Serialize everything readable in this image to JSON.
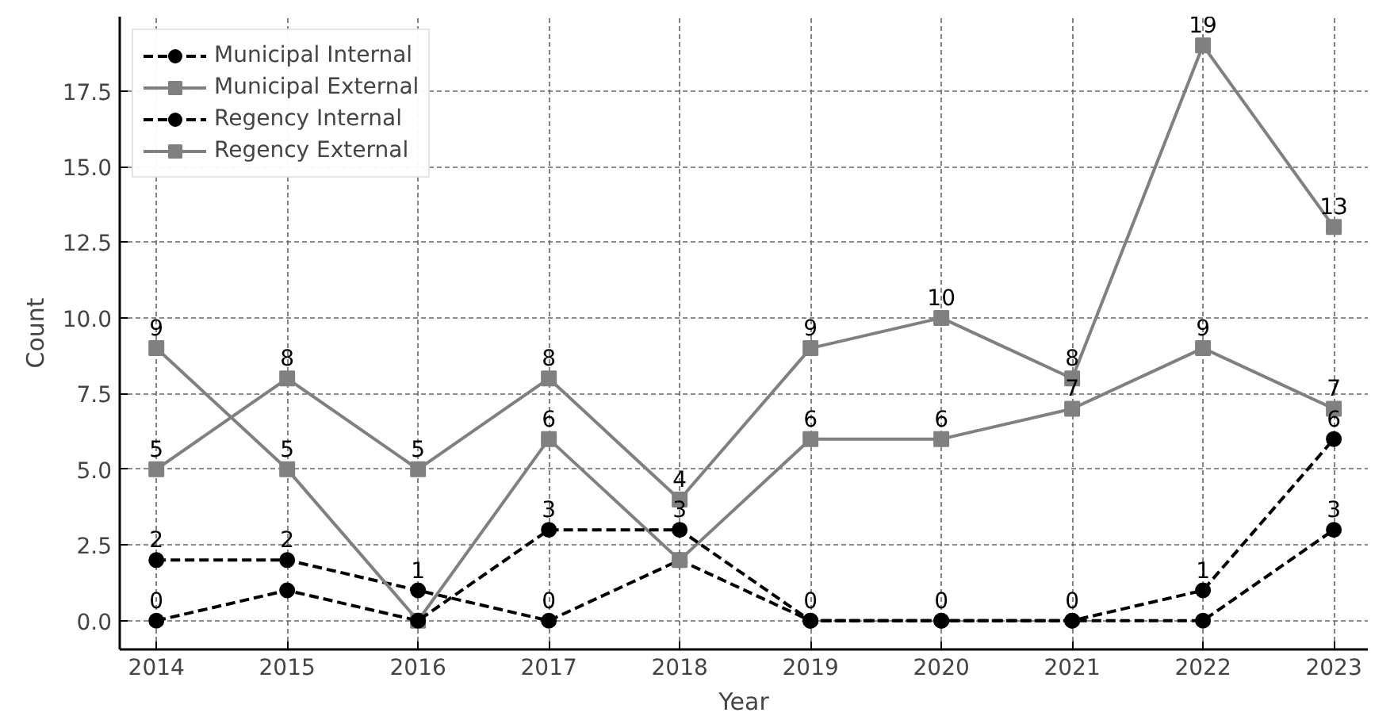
{
  "chart_data": {
    "type": "line",
    "xlabel": "Year",
    "ylabel": "Count",
    "x": [
      2014,
      2015,
      2016,
      2017,
      2018,
      2019,
      2020,
      2021,
      2022,
      2023
    ],
    "xlim": [
      2013.72,
      2023.26
    ],
    "xticks": [
      2014,
      2015,
      2016,
      2017,
      2018,
      2019,
      2020,
      2021,
      2022,
      2023
    ],
    "ylim": [
      -0.95,
      19.95
    ],
    "yticks": [
      {
        "value": 0,
        "label": "0.0"
      },
      {
        "value": 2.5,
        "label": "2.5"
      },
      {
        "value": 5,
        "label": "5.0"
      },
      {
        "value": 7.5,
        "label": "7.5"
      },
      {
        "value": 10,
        "label": "10.0"
      },
      {
        "value": 12.5,
        "label": "12.5"
      },
      {
        "value": 15,
        "label": "15.0"
      },
      {
        "value": 17.5,
        "label": "17.5"
      }
    ],
    "grid": true,
    "legend": "top left",
    "series": [
      {
        "name": "Municipal Internal",
        "color": "#000000",
        "marker": "circle",
        "line_style": "dashed",
        "values": [
          2,
          2,
          1,
          0,
          2,
          0,
          0,
          0,
          1,
          6
        ],
        "value_labels": [
          "2",
          "2",
          "1",
          "0",
          null,
          "0",
          "0",
          "0",
          "1",
          "6"
        ]
      },
      {
        "name": "Municipal External",
        "color": "#808080",
        "marker": "square",
        "line_style": "solid",
        "values": [
          9,
          5,
          0,
          6,
          2,
          6,
          6,
          7,
          9,
          7
        ],
        "value_labels": [
          "9",
          "5",
          null,
          "6",
          null,
          "6",
          "6",
          "7",
          "9",
          "7"
        ]
      },
      {
        "name": "Regency Internal",
        "color": "#000000",
        "marker": "circle",
        "line_style": "dashed",
        "values": [
          0,
          1,
          0,
          3,
          3,
          0,
          0,
          0,
          0,
          3
        ],
        "value_labels": [
          "0",
          null,
          null,
          "3",
          "3",
          null,
          null,
          null,
          null,
          "3"
        ]
      },
      {
        "name": "Regency External",
        "color": "#808080",
        "marker": "square",
        "line_style": "solid",
        "values": [
          5,
          8,
          5,
          8,
          4,
          9,
          10,
          8,
          19,
          13
        ],
        "value_labels": [
          "5",
          "8",
          "5",
          "8",
          "4",
          "9",
          "10",
          "8",
          "19",
          "13"
        ]
      }
    ]
  }
}
